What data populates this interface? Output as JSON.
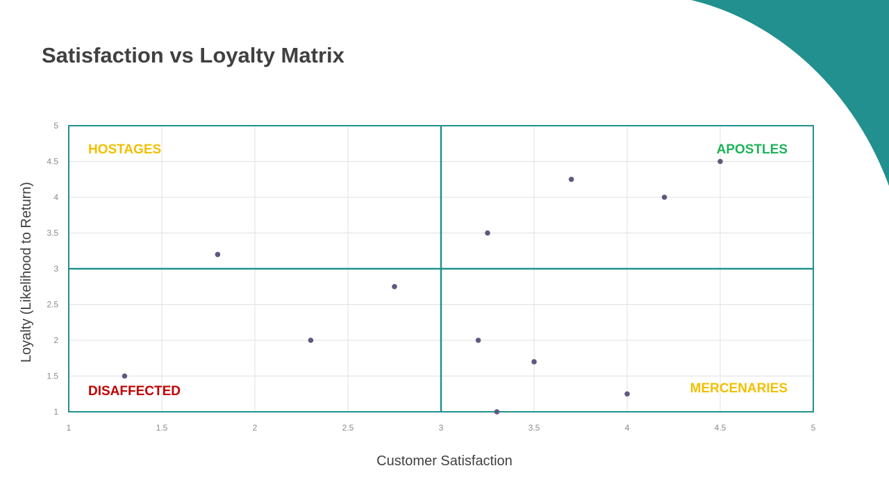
{
  "title": "Satisfaction vs Loyalty Matrix",
  "colors": {
    "accent": "#21908f",
    "point": "#5b5a7e",
    "grid": "#e0e0e0",
    "hostages": "#f2c000",
    "apostles": "#1fb25a",
    "disaffected": "#c00000",
    "mercenaries": "#f2c000"
  },
  "chart_data": {
    "type": "scatter",
    "xlabel": "Customer Satisfaction",
    "ylabel": "Loyalty (Likelihood to Return)",
    "xlim": [
      1,
      5
    ],
    "ylim": [
      1,
      5
    ],
    "xticks": [
      "1",
      "1.5",
      "2",
      "2.5",
      "3",
      "3.5",
      "4",
      "4.5",
      "5"
    ],
    "yticks": [
      "1",
      "1.5",
      "2",
      "2.5",
      "3",
      "3.5",
      "4",
      "4.5",
      "5"
    ],
    "grid": true,
    "dividers": {
      "x": 3,
      "y": 3
    },
    "quadrants": {
      "top_left": "HOSTAGES",
      "top_right": "APOSTLES",
      "bottom_left": "DISAFFECTED",
      "bottom_right": "MERCENARIES"
    },
    "points": [
      {
        "x": 1.8,
        "y": 3.2
      },
      {
        "x": 1.3,
        "y": 1.5
      },
      {
        "x": 2.3,
        "y": 2.0
      },
      {
        "x": 2.75,
        "y": 2.75
      },
      {
        "x": 3.25,
        "y": 3.5
      },
      {
        "x": 3.7,
        "y": 4.25
      },
      {
        "x": 4.2,
        "y": 4.0
      },
      {
        "x": 4.5,
        "y": 4.5
      },
      {
        "x": 3.2,
        "y": 2.0
      },
      {
        "x": 3.5,
        "y": 1.7
      },
      {
        "x": 4.0,
        "y": 1.25
      },
      {
        "x": 3.3,
        "y": 1.0
      }
    ]
  }
}
